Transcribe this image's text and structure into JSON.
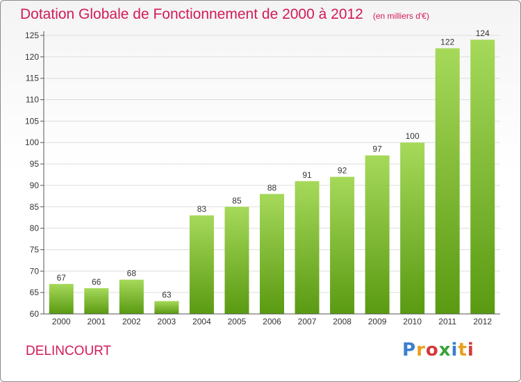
{
  "header": {
    "title": "Dotation Globale de Fonctionnement de 2000 à 2012",
    "unit": "(en milliers d'€)"
  },
  "footer": {
    "commune": "DELINCOURT",
    "brand_letters": [
      "P",
      "r",
      "o",
      "x",
      "i",
      "t",
      "i"
    ],
    "brand_colors": [
      "#3a7fd0",
      "#e8a020",
      "#d33a3a",
      "#3aa33a",
      "#3a7fd0",
      "#e8a020",
      "#d33a3a"
    ]
  },
  "colors": {
    "bar_light": "#a6d95a",
    "bar_dark": "#5a9a12",
    "accent": "#d21a5a",
    "grid": "#dddddd",
    "axis": "#555555"
  },
  "chart_data": {
    "type": "bar",
    "categories": [
      "2000",
      "2001",
      "2002",
      "2003",
      "2004",
      "2005",
      "2006",
      "2007",
      "2008",
      "2009",
      "2010",
      "2011",
      "2012"
    ],
    "values": [
      67,
      66,
      68,
      63,
      83,
      85,
      88,
      91,
      92,
      97,
      100,
      122,
      124
    ],
    "ylim": [
      60,
      125
    ],
    "yticks": [
      60,
      65,
      70,
      75,
      80,
      85,
      90,
      95,
      100,
      105,
      110,
      115,
      120,
      125
    ],
    "grid": true
  }
}
